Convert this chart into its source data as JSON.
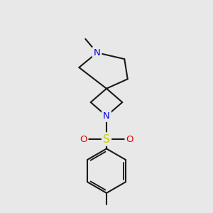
{
  "bg_color": "#e8e8e8",
  "bond_color": "#1a1a1a",
  "N_color": "#0000ee",
  "S_color": "#cccc00",
  "O_color": "#ee0000",
  "lw": 1.5,
  "fs": 9.5,
  "xlim": [
    0,
    10
  ],
  "ylim": [
    0,
    10
  ]
}
